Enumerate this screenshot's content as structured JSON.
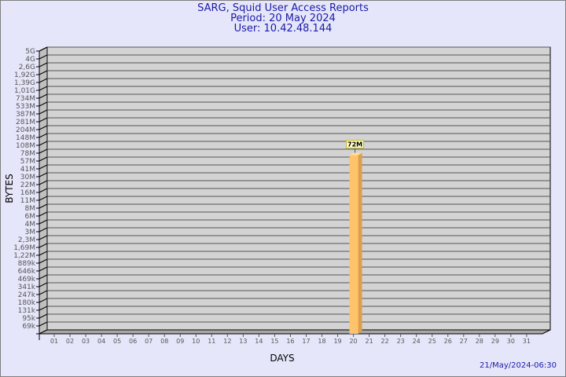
{
  "header": {
    "title": "SARG, Squid User Access Reports",
    "period": "Period: 20 May 2024",
    "user": "User: 10.42.48.144"
  },
  "footer": {
    "generated": "21/May/2024-06:30"
  },
  "chart_data": {
    "type": "bar",
    "xlabel": "DAYS",
    "ylabel": "BYTES",
    "y_scale": "log",
    "grid": true,
    "categories": [
      "01",
      "02",
      "03",
      "04",
      "05",
      "06",
      "07",
      "08",
      "09",
      "10",
      "11",
      "12",
      "13",
      "14",
      "15",
      "16",
      "17",
      "18",
      "19",
      "20",
      "21",
      "22",
      "23",
      "24",
      "25",
      "26",
      "27",
      "28",
      "29",
      "30",
      "31"
    ],
    "y_tick_labels": [
      "5G",
      "4G",
      "2,6G",
      "1,92G",
      "1,39G",
      "1,01G",
      "734M",
      "533M",
      "387M",
      "281M",
      "204M",
      "148M",
      "108M",
      "78M",
      "57M",
      "41M",
      "30M",
      "22M",
      "16M",
      "11M",
      "8M",
      "6M",
      "4M",
      "3M",
      "2,3M",
      "1,69M",
      "1,22M",
      "889k",
      "646k",
      "469k",
      "341k",
      "247k",
      "180k",
      "131k",
      "95k",
      "69k"
    ],
    "series": [
      {
        "values": [
          null,
          null,
          null,
          null,
          null,
          null,
          null,
          null,
          null,
          null,
          null,
          null,
          null,
          null,
          null,
          null,
          null,
          null,
          null,
          72000000,
          null,
          null,
          null,
          null,
          null,
          null,
          null,
          null,
          null,
          null,
          null
        ],
        "data_labels": {
          "20": "72M"
        }
      }
    ],
    "colors": {
      "bar": "#ffc46b",
      "bar_side": "#dca04c",
      "plot": "#d3d3d3",
      "label_bg": "#ffffc8",
      "label_border": "#c8b432"
    }
  }
}
